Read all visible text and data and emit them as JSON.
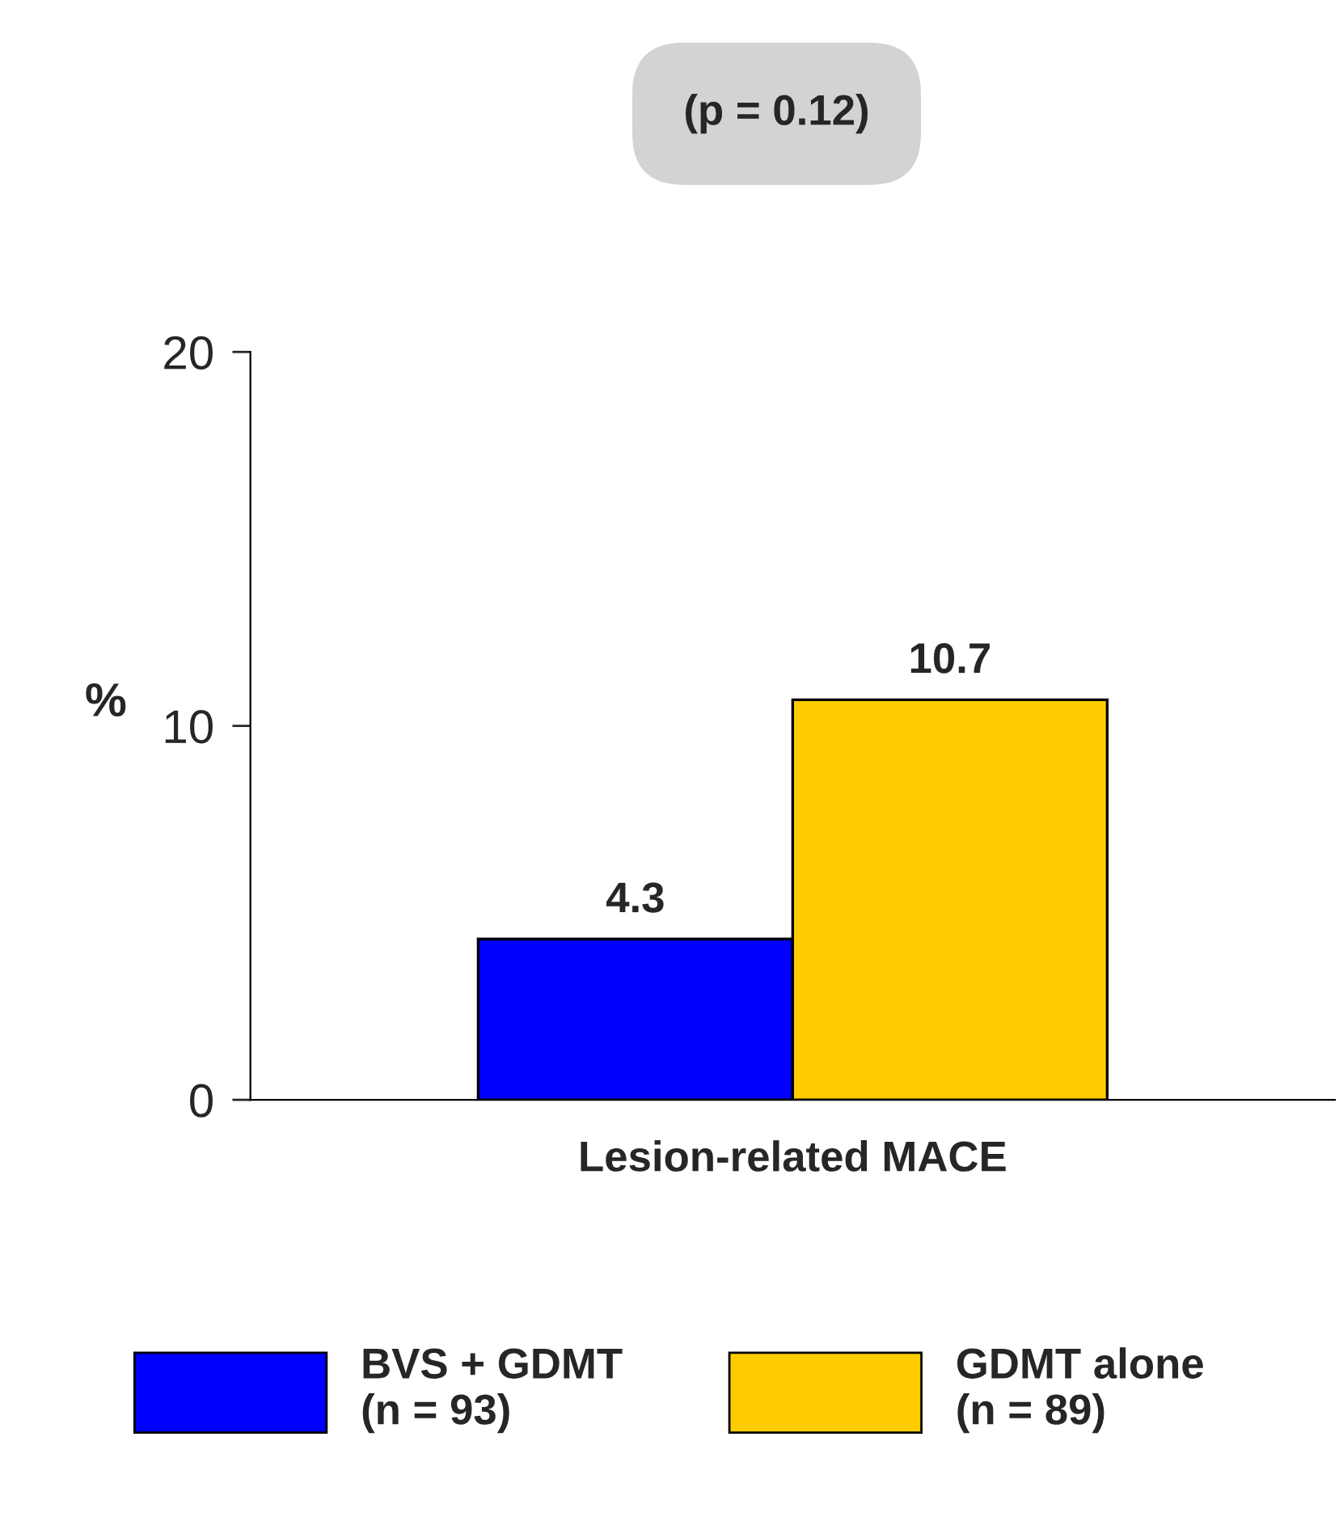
{
  "chart_data": {
    "type": "bar",
    "categories": [
      "Lesion-related MACE"
    ],
    "ylabel": "%",
    "series": [
      {
        "name": "BVS + GDMT\n(n = 93)",
        "color": "#0000ff",
        "values": [
          4.3
        ]
      },
      {
        "name": "GDMT alone\n(n = 89)",
        "color": "#ffcc00",
        "values": [
          10.7
        ]
      }
    ],
    "ylim": [
      0,
      20
    ],
    "yticks": [
      0,
      10,
      20
    ],
    "data_labels": true,
    "grid": false,
    "legend": "bottom",
    "annotations": [
      "(p = 0.12)"
    ]
  }
}
